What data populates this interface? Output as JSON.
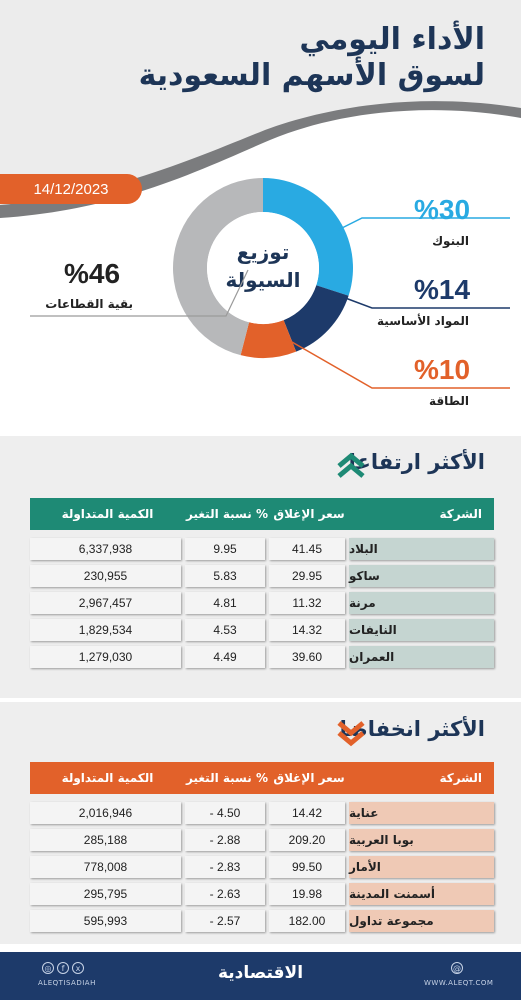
{
  "header": {
    "title_line1": "الأداء اليومي",
    "title_line2": "لسوق الأسهم السعودية",
    "date": "14/12/2023"
  },
  "donut": {
    "center_line1": "توزيع",
    "center_line2": "السيولة",
    "segments": [
      {
        "label": "البنوك",
        "pct_text": "%30",
        "value": 30,
        "color": "#29aae2"
      },
      {
        "label": "المواد الأساسية",
        "pct_text": "%14",
        "value": 14,
        "color": "#1d3a6a"
      },
      {
        "label": "الطاقة",
        "pct_text": "%10",
        "value": 10,
        "color": "#e2612a"
      },
      {
        "label": "بقية القطاعات",
        "pct_text": "%46",
        "value": 46,
        "color": "#b7b8ba"
      }
    ]
  },
  "columns": [
    "الشركة",
    "سعر الإغلاق",
    "نسبة التغير %",
    "الكمية المتداولة"
  ],
  "gainers": {
    "title": "الأكثر ارتفاعا",
    "header_color": "#1e8a75",
    "name_bg": "#c5d5d1",
    "rows": [
      {
        "name": "البلاد",
        "close": "41.45",
        "change": "9.95",
        "volume": "6,337,938"
      },
      {
        "name": "ساكو",
        "close": "29.95",
        "change": "5.83",
        "volume": "230,955"
      },
      {
        "name": "مرنة",
        "close": "11.32",
        "change": "4.81",
        "volume": "2,967,457"
      },
      {
        "name": "النايفات",
        "close": "14.32",
        "change": "4.53",
        "volume": "1,829,534"
      },
      {
        "name": "العمران",
        "close": "39.60",
        "change": "4.49",
        "volume": "1,279,030"
      }
    ]
  },
  "losers": {
    "title": "الأكثر انخفاضا",
    "header_color": "#e2612a",
    "name_bg": "#efc9b5",
    "rows": [
      {
        "name": "عناية",
        "close": "14.42",
        "change": "- 4.50",
        "volume": "2,016,946"
      },
      {
        "name": "بوبا العربية",
        "close": "209.20",
        "change": "- 2.88",
        "volume": "285,188"
      },
      {
        "name": "الأمار",
        "close": "99.50",
        "change": "- 2.83",
        "volume": "778,008"
      },
      {
        "name": "أسمنت المدينة",
        "close": "19.98",
        "change": "- 2.63",
        "volume": "295,795"
      },
      {
        "name": "مجموعة تداول",
        "close": "182.00",
        "change": "- 2.57",
        "volume": "595,993"
      }
    ]
  },
  "footer": {
    "brand": "الاقتصادية",
    "social_handle": "ALEQTISADIAH",
    "website": "WWW.ALEQT.COM"
  }
}
